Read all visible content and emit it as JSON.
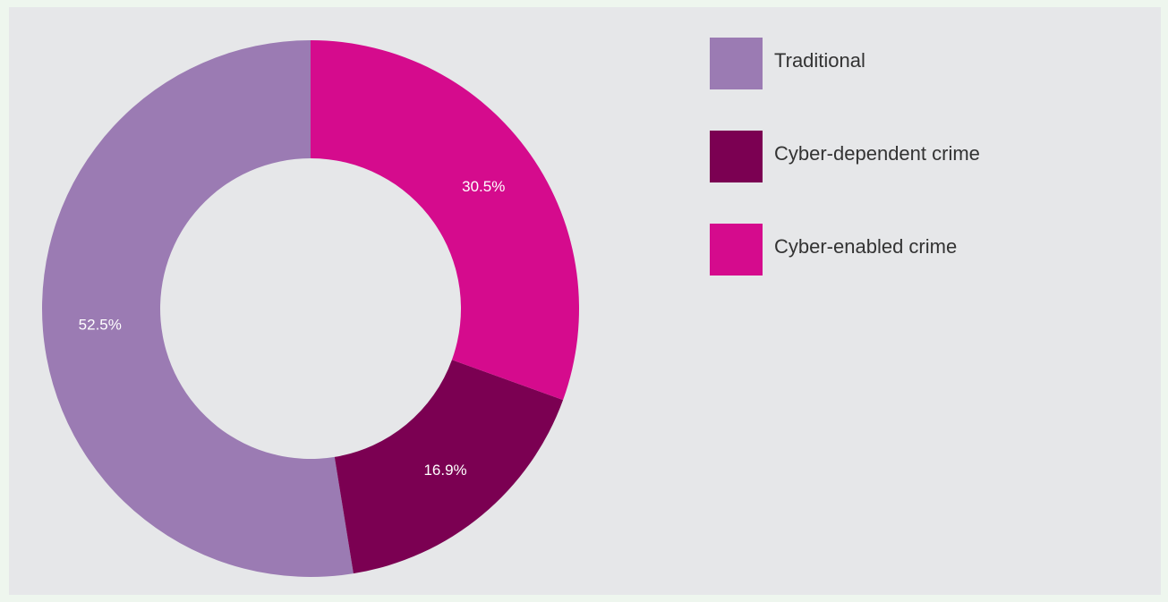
{
  "chart_data": {
    "type": "donut",
    "categories": [
      "Traditional",
      "Cyber-dependent crime",
      "Cyber-enabled crime"
    ],
    "values": [
      52.5,
      16.9,
      30.5
    ],
    "value_labels": [
      "52.5%",
      "16.9%",
      "30.5%"
    ],
    "colors": [
      "#9b7bb3",
      "#7b0052",
      "#d50b8d"
    ],
    "legend": "right"
  }
}
